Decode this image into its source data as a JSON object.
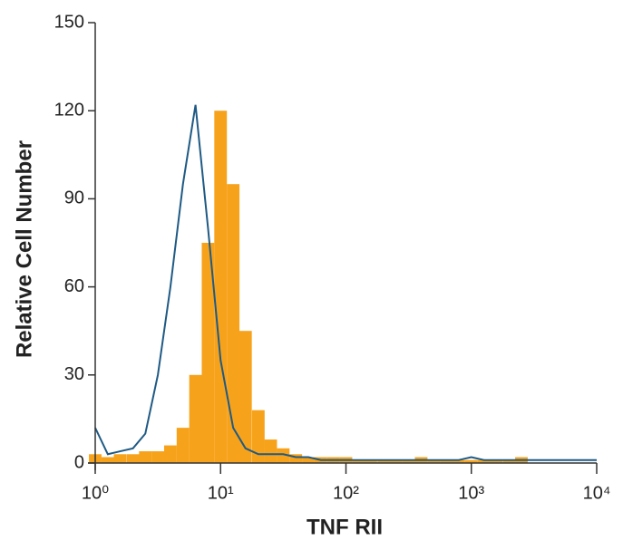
{
  "chart_data": {
    "type": "histogram",
    "x_label": "TNF RII",
    "y_label": "Relative Cell Number",
    "x_scale": "log",
    "xlim": [
      1,
      10000
    ],
    "xticks": [
      {
        "value": 1,
        "label": "10⁰"
      },
      {
        "value": 10,
        "label": "10¹"
      },
      {
        "value": 100,
        "label": "10²"
      },
      {
        "value": 1000,
        "label": "10³"
      },
      {
        "value": 10000,
        "label": "10⁴"
      }
    ],
    "ylim": [
      0,
      150
    ],
    "yticks": [
      0,
      30,
      60,
      90,
      120,
      150
    ],
    "x": [
      1,
      1.26,
      1.58,
      2,
      2.51,
      3.16,
      3.98,
      5.01,
      6.31,
      7.94,
      10,
      12.6,
      15.8,
      20,
      25.1,
      31.6,
      39.8,
      50.1,
      63.1,
      79.4,
      100,
      126,
      158,
      200,
      251,
      316,
      398,
      501,
      631,
      794,
      1000,
      1260,
      1580,
      2000,
      2510,
      3160,
      3980,
      5010,
      6310,
      7940,
      10000
    ],
    "series": [
      {
        "color": "#f7a21b",
        "style": "filled",
        "values": [
          3,
          2,
          3,
          3,
          4,
          4,
          6,
          12,
          30,
          75,
          120,
          95,
          45,
          18,
          8,
          5,
          3,
          2,
          2,
          2,
          2,
          1,
          1,
          1,
          1,
          1,
          2,
          1,
          1,
          1,
          1,
          1,
          1,
          1,
          2,
          0,
          0,
          0,
          0,
          0,
          0
        ]
      },
      {
        "color": "#1f5a84",
        "style": "outline",
        "values": [
          12,
          3,
          4,
          5,
          10,
          30,
          60,
          95,
          122,
          80,
          35,
          12,
          5,
          3,
          3,
          3,
          2,
          2,
          1,
          1,
          1,
          1,
          1,
          1,
          1,
          1,
          1,
          1,
          1,
          1,
          2,
          1,
          1,
          1,
          1,
          1,
          1,
          1,
          1,
          1,
          1
        ]
      }
    ]
  }
}
